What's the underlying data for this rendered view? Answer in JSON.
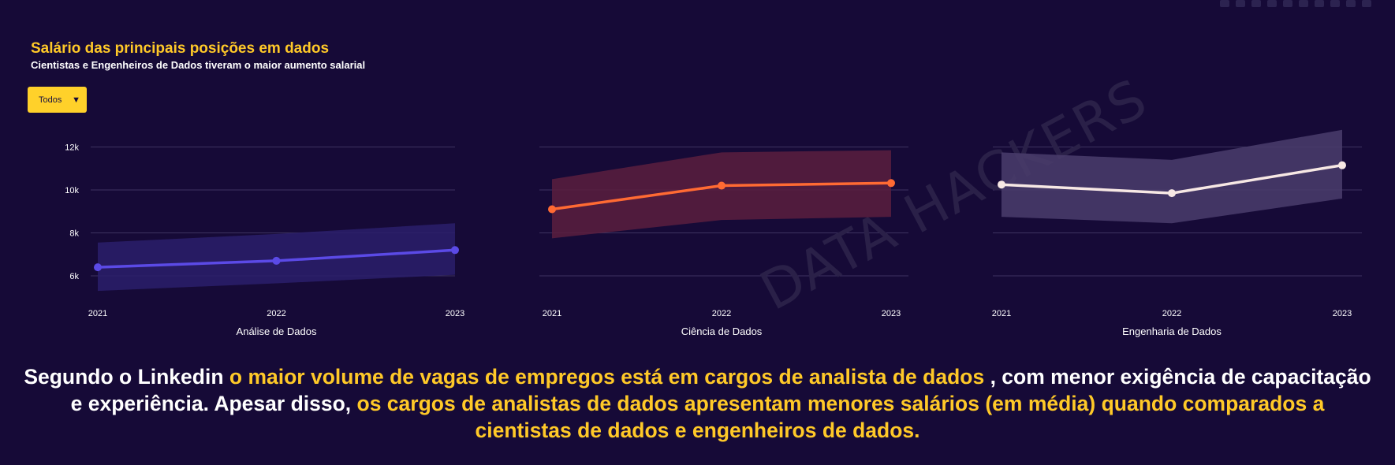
{
  "toolbar": {
    "icons": [
      "camera-icon",
      "zoom-icon",
      "pan-icon",
      "box-select-icon",
      "lasso-icon",
      "zoom-in-icon",
      "zoom-out-icon",
      "autoscale-icon",
      "reset-icon",
      "plotly-logo-icon"
    ]
  },
  "chart_data": {
    "type": "line",
    "title": "Salário das principais posições em dados",
    "subtitle": "Cientistas e Engenheiros de Dados tiveram o maior aumento salarial",
    "watermark": "DATA HACKERS",
    "x": [
      "2021",
      "2022",
      "2023"
    ],
    "yticks": [
      "6k",
      "8k",
      "10k",
      "12k"
    ],
    "ylim": [
      5000,
      12800
    ],
    "grid": true,
    "subplots": [
      {
        "xlabel": "Análise de Dados",
        "color": "#5b4ae6",
        "band_color": "#2a1f6b",
        "values": [
          6400,
          6700,
          7200
        ],
        "band_low": [
          5300,
          5650,
          6050
        ],
        "band_high": [
          7550,
          7950,
          8450
        ]
      },
      {
        "xlabel": "Ciência de Dados",
        "color": "#ff6a33",
        "band_color": "#5a1e3e",
        "values": [
          9100,
          10200,
          10320
        ],
        "band_low": [
          7750,
          8600,
          8750
        ],
        "band_high": [
          10500,
          11750,
          11850
        ]
      },
      {
        "xlabel": "Engenharia de Dados",
        "color": "#f7e8e4",
        "band_color": "#4a3d6c",
        "values": [
          10250,
          9850,
          11150
        ],
        "band_low": [
          8750,
          8450,
          9600
        ],
        "band_high": [
          11750,
          11400,
          12800
        ]
      }
    ]
  },
  "filter": {
    "selected": "Todos",
    "arrow": "▼"
  },
  "caption": {
    "p1": "Segundo o Linkedin ",
    "h1": "o maior volume de vagas de empregos está em cargos de analista de dados",
    "p2": " , com menor exigência de capacitação e experiência. Apesar disso, ",
    "h2": "os cargos de analistas de dados apresentam menores salários (em média) quando comparados a cientistas de dados e engenheiros de dados."
  }
}
